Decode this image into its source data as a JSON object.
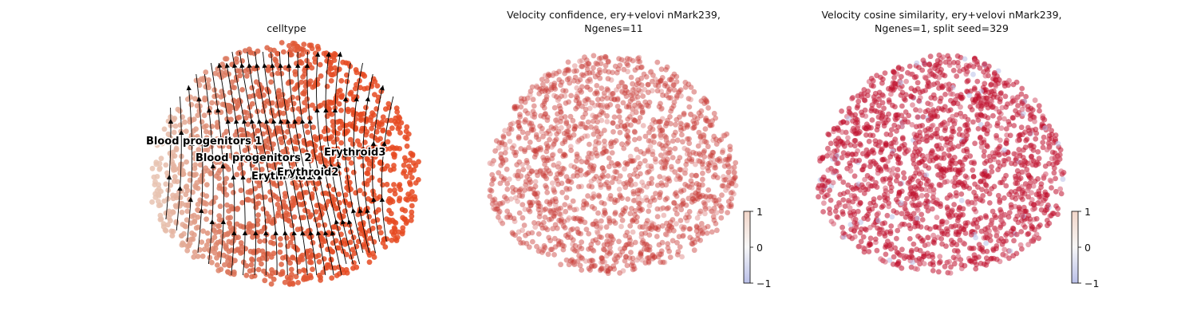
{
  "chart_data": [
    {
      "type": "scatter",
      "title": "celltype",
      "annotations": [
        "Blood progenitors 1",
        "Blood progenitors 2",
        "Erythroid1",
        "Erythroid2",
        "Erythroid3"
      ],
      "colors": {
        "progenitor": "#e7c3b1",
        "mid": "#d96a4e",
        "erythroid": "#e64a21",
        "stream": "#000000"
      },
      "stream_arrows": true
    },
    {
      "type": "scatter",
      "title_lines": [
        "Velocity confidence, ery+velovi nMark239,",
        "Ngenes=11"
      ],
      "colorbar": {
        "ticks": [
          "1",
          "0",
          "−1"
        ],
        "range": [
          -1,
          1
        ]
      },
      "colors": {
        "point": "#c83a35",
        "high": "#f2d6c9",
        "low": "#b9bfe8"
      }
    },
    {
      "type": "scatter",
      "title_lines": [
        "Velocity cosine similarity, ery+velovi nMark239,",
        "Ngenes=1, split seed=329"
      ],
      "colorbar": {
        "ticks": [
          "1",
          "0",
          "−1"
        ],
        "range": [
          -1,
          1
        ]
      },
      "colors": {
        "point": "#c0112e",
        "high": "#f2d6c9",
        "low": "#b9bfe8"
      }
    }
  ]
}
